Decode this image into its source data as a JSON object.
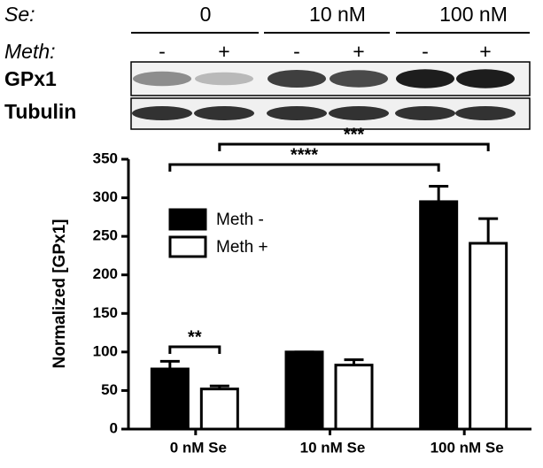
{
  "blot": {
    "se_label": "Se:",
    "se_levels": [
      "0",
      "10 nM",
      "100 nM"
    ],
    "meth_label": "Meth:",
    "meth_levels": [
      "-",
      "+",
      "-",
      "+",
      "-",
      "+"
    ],
    "rows": [
      "GPx1",
      "Tubulin"
    ]
  },
  "chart_data": {
    "type": "bar",
    "ylabel": "Normalized [GPx1]",
    "categories": [
      "0 nM Se",
      "10 nM Se",
      "100 nM Se"
    ],
    "series": [
      {
        "name": "Meth -",
        "color": "#000000",
        "values": [
          78,
          100,
          295
        ],
        "errors": [
          10,
          0,
          20
        ]
      },
      {
        "name": "Meth +",
        "color": "#ffffff",
        "values": [
          52,
          83,
          241
        ],
        "errors": [
          4,
          7,
          32
        ]
      }
    ],
    "ylim": [
      0,
      350
    ],
    "yticks": [
      0,
      50,
      100,
      150,
      200,
      250,
      300,
      350
    ],
    "annotations": [
      "**",
      "****",
      "***"
    ],
    "legend": "upper left"
  }
}
